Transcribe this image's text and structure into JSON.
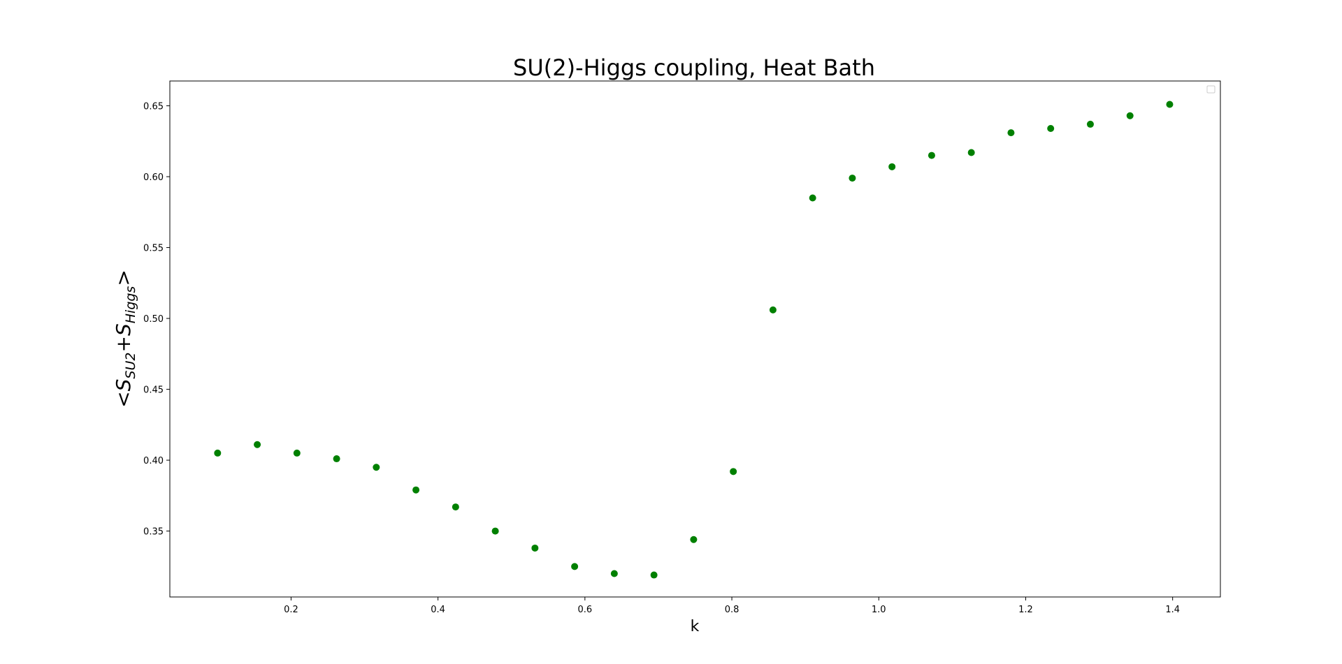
{
  "chart_data": {
    "type": "scatter",
    "title": "SU(2)-Higgs coupling, Heat Bath",
    "xlabel": "k",
    "ylabel": {
      "prefix": "<",
      "s1": "S",
      "sub1": "SU2",
      "plus": "+",
      "s2": "S",
      "sub2": "Higgs",
      "suffix": ">"
    },
    "xlim": [
      0.035,
      1.465
    ],
    "ylim": [
      0.3035,
      0.6675
    ],
    "xticks": [
      0.2,
      0.4,
      0.6,
      0.8,
      1.0,
      1.2,
      1.4
    ],
    "xtick_labels": [
      "0.2",
      "0.4",
      "0.6",
      "0.8",
      "1.0",
      "1.2",
      "1.4"
    ],
    "yticks": [
      0.35,
      0.4,
      0.45,
      0.5,
      0.55,
      0.6,
      0.65
    ],
    "ytick_labels": [
      "0.35",
      "0.40",
      "0.45",
      "0.50",
      "0.55",
      "0.60",
      "0.65"
    ],
    "grid": false,
    "legend": "top-right (empty)",
    "marker_color": "#008000",
    "series": [
      {
        "x": [
          0.1,
          0.154,
          0.208,
          0.262,
          0.316,
          0.37,
          0.424,
          0.478,
          0.532,
          0.586,
          0.64,
          0.694,
          0.748,
          0.802,
          0.856,
          0.91,
          0.964,
          1.018,
          1.072,
          1.126,
          1.18,
          1.234,
          1.288,
          1.342,
          1.396
        ],
        "y": [
          0.405,
          0.411,
          0.405,
          0.401,
          0.395,
          0.379,
          0.367,
          0.35,
          0.338,
          0.325,
          0.32,
          0.319,
          0.344,
          0.392,
          0.506,
          0.585,
          0.599,
          0.607,
          0.615,
          0.617,
          0.631,
          0.634,
          0.637,
          0.643,
          0.651
        ]
      }
    ]
  }
}
